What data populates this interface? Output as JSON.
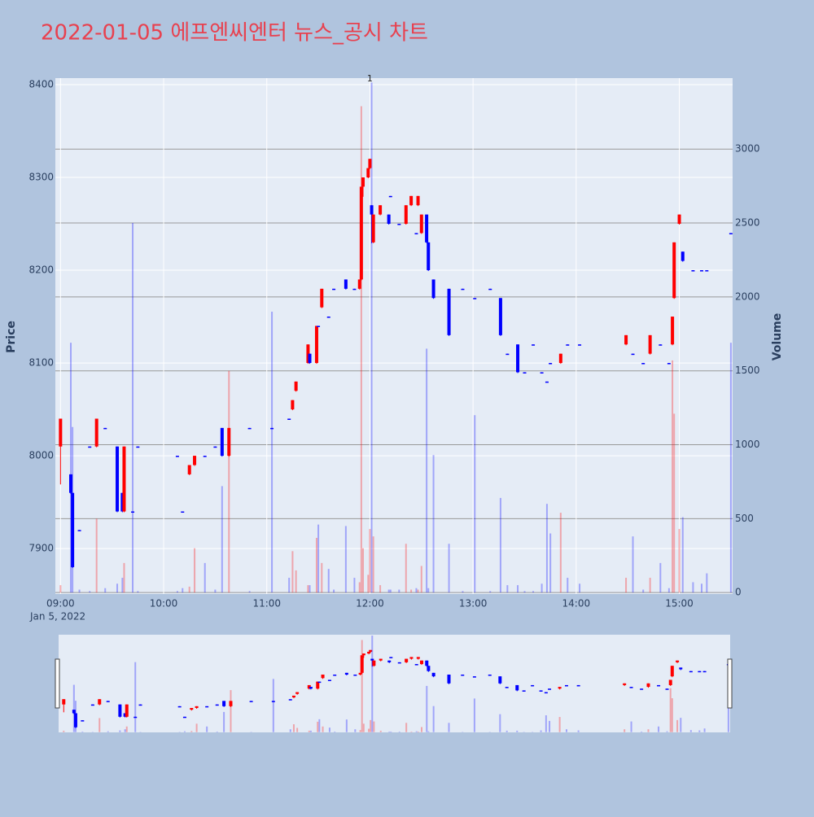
{
  "chart_data": {
    "type": "candlestick",
    "title": "2022-01-05 에프엔씨엔터 뉴스_공시 차트",
    "ylabel": "Price",
    "y2label": "Volume",
    "x_date_label": "Jan 5, 2022",
    "annotations": [
      {
        "x": "12:00",
        "text": "1"
      }
    ],
    "increasing_color": "#ff0000",
    "decreasing_color": "#0000ff",
    "x": [
      "09:00",
      "09:06",
      "09:07",
      "09:11",
      "09:17",
      "09:21",
      "09:26",
      "09:33",
      "09:36",
      "09:37",
      "09:42",
      "09:45",
      "10:08",
      "10:11",
      "10:15",
      "10:18",
      "10:24",
      "10:30",
      "10:34",
      "10:38",
      "10:50",
      "11:03",
      "11:13",
      "11:15",
      "11:17",
      "11:24",
      "11:25",
      "11:29",
      "11:30",
      "11:32",
      "11:36",
      "11:39",
      "11:46",
      "11:51",
      "11:54",
      "11:55",
      "11:56",
      "11:59",
      "12:00",
      "12:01",
      "12:02",
      "12:06",
      "12:11",
      "12:12",
      "12:17",
      "12:21",
      "12:24",
      "12:27",
      "12:28",
      "12:30",
      "12:33",
      "12:34",
      "12:37",
      "12:46",
      "12:54",
      "13:01",
      "13:10",
      "13:16",
      "13:20",
      "13:26",
      "13:30",
      "13:35",
      "13:40",
      "13:43",
      "13:45",
      "13:51",
      "13:55",
      "14:02",
      "14:29",
      "14:33",
      "14:39",
      "14:43",
      "14:49",
      "14:54",
      "14:56",
      "14:57",
      "15:00",
      "15:02",
      "15:08",
      "15:13",
      "15:16",
      "15:30"
    ],
    "open": [
      8010,
      7980,
      7960,
      7920,
      8010,
      8010,
      8030,
      8010,
      7960,
      7940,
      7940,
      8010,
      8000,
      7940,
      7980,
      7990,
      8000,
      8010,
      8030,
      8000,
      8030,
      8030,
      8040,
      8050,
      8070,
      8100,
      8110,
      8100,
      8140,
      8160,
      8150,
      8180,
      8190,
      8180,
      8180,
      8190,
      8290,
      8300,
      8310,
      8270,
      8230,
      8260,
      8260,
      8280,
      8250,
      8250,
      8270,
      8240,
      8270,
      8240,
      8260,
      8230,
      8190,
      8180,
      8180,
      8170,
      8180,
      8170,
      8110,
      8120,
      8090,
      8120,
      8090,
      8080,
      8100,
      8100,
      8120,
      8120,
      8120,
      8110,
      8100,
      8110,
      8120,
      8100,
      8120,
      8170,
      8250,
      8220,
      8200,
      8200,
      8200,
      8240
    ],
    "high": [
      8040,
      7980,
      7960,
      7920,
      8010,
      8040,
      8030,
      8010,
      7960,
      8010,
      7940,
      8010,
      8000,
      7940,
      7990,
      8000,
      8000,
      8010,
      8030,
      8030,
      8030,
      8030,
      8040,
      8060,
      8080,
      8120,
      8110,
      8140,
      8140,
      8180,
      8150,
      8180,
      8190,
      8180,
      8190,
      8290,
      8300,
      8310,
      8320,
      8270,
      8260,
      8270,
      8260,
      8280,
      8250,
      8270,
      8280,
      8240,
      8280,
      8260,
      8260,
      8230,
      8190,
      8180,
      8180,
      8170,
      8180,
      8170,
      8110,
      8120,
      8090,
      8120,
      8090,
      8080,
      8100,
      8110,
      8120,
      8120,
      8130,
      8110,
      8100,
      8130,
      8120,
      8100,
      8150,
      8230,
      8260,
      8220,
      8200,
      8200,
      8200,
      8240
    ],
    "low": [
      7970,
      7960,
      7880,
      7920,
      8010,
      8010,
      8030,
      7940,
      7940,
      7940,
      7940,
      8010,
      8000,
      7940,
      7980,
      7990,
      8000,
      8010,
      8000,
      8000,
      8030,
      8030,
      8040,
      8050,
      8070,
      8100,
      8100,
      8100,
      8140,
      8160,
      8150,
      8180,
      8180,
      8180,
      8180,
      8190,
      8280,
      8300,
      8310,
      8230,
      8230,
      8260,
      8250,
      8280,
      8250,
      8250,
      8270,
      8240,
      8270,
      8240,
      8230,
      8200,
      8170,
      8130,
      8180,
      8170,
      8180,
      8130,
      8110,
      8090,
      8090,
      8120,
      8090,
      8080,
      8100,
      8100,
      8120,
      8120,
      8120,
      8110,
      8100,
      8110,
      8120,
      8100,
      8120,
      8170,
      8250,
      8210,
      8200,
      8200,
      8200,
      8240
    ],
    "close": [
      8040,
      7960,
      7880,
      7920,
      8010,
      8040,
      8030,
      7940,
      7940,
      8010,
      7940,
      8010,
      8000,
      7940,
      7990,
      8000,
      8000,
      8010,
      8000,
      8030,
      8030,
      8030,
      8040,
      8060,
      8080,
      8120,
      8100,
      8140,
      8140,
      8180,
      8150,
      8180,
      8180,
      8180,
      8190,
      8290,
      8300,
      8310,
      8320,
      8260,
      8260,
      8270,
      8250,
      8280,
      8250,
      8270,
      8280,
      8240,
      8280,
      8260,
      8230,
      8200,
      8170,
      8130,
      8180,
      8170,
      8180,
      8130,
      8110,
      8090,
      8090,
      8120,
      8090,
      8080,
      8100,
      8110,
      8120,
      8120,
      8130,
      8110,
      8100,
      8130,
      8120,
      8100,
      8150,
      8230,
      8260,
      8210,
      8200,
      8200,
      8200,
      8240
    ],
    "volume": [
      50,
      1690,
      1120,
      20,
      10,
      500,
      30,
      60,
      100,
      200,
      2500,
      10,
      10,
      30,
      40,
      300,
      200,
      20,
      720,
      1500,
      10,
      1900,
      100,
      280,
      150,
      50,
      50,
      370,
      460,
      200,
      160,
      20,
      450,
      100,
      70,
      3290,
      300,
      120,
      430,
      3450,
      380,
      50,
      20,
      20,
      20,
      330,
      20,
      30,
      20,
      180,
      1650,
      30,
      930,
      330,
      10,
      1200,
      10,
      640,
      50,
      50,
      10,
      10,
      60,
      600,
      400,
      540,
      100,
      60,
      100,
      380,
      20,
      100,
      200,
      30,
      1570,
      1210,
      430,
      510,
      70,
      60,
      130,
      1690
    ],
    "xlim": [
      "08:57",
      "15:31"
    ],
    "xticks": [
      "09:00",
      "10:00",
      "11:00",
      "12:00",
      "13:00",
      "14:00",
      "15:00"
    ],
    "ylim": [
      7851,
      8407
    ],
    "yticks": [
      7900,
      8000,
      8100,
      8200,
      8300,
      8400
    ],
    "y2lim": [
      -10,
      3480
    ],
    "y2ticks": [
      0,
      500,
      1000,
      1500,
      2000,
      2500,
      3000
    ],
    "grid": true,
    "rangeslider": true
  }
}
